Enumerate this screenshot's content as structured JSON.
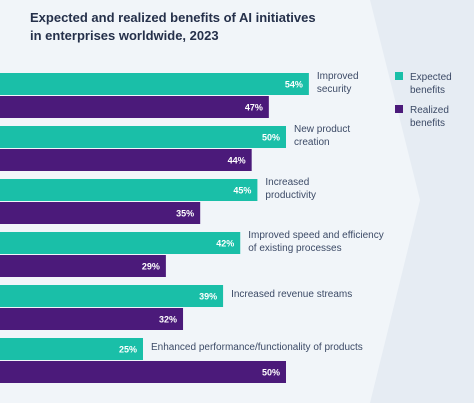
{
  "chart_data": {
    "type": "bar",
    "orientation": "horizontal",
    "title": "Expected and realized benefits of AI initiatives in enterprises worldwide, 2023",
    "title_lines": [
      "Expected and realized benefits of AI initiatives",
      "in enterprises worldwide, 2023"
    ],
    "value_suffix": "%",
    "categories": [
      [
        "Improved",
        "security"
      ],
      [
        "New product",
        "creation"
      ],
      [
        "Increased",
        "productivity"
      ],
      [
        "Improved speed and efficiency",
        "of existing processes"
      ],
      [
        "Increased revenue streams"
      ],
      [
        "Enhanced performance/functionality of products"
      ]
    ],
    "series": [
      {
        "name": "Expected benefits",
        "legend_lines": [
          "Expected",
          "benefits"
        ],
        "color": "#1abfa8",
        "values": [
          54,
          50,
          45,
          42,
          39,
          25
        ]
      },
      {
        "name": "Realized benefits",
        "legend_lines": [
          "Realized",
          "benefits"
        ],
        "color": "#4b1a7a",
        "values": [
          47,
          44,
          35,
          29,
          32,
          50
        ]
      }
    ],
    "xlim": [
      0,
      60
    ],
    "grid": false,
    "legend": "top-right"
  }
}
